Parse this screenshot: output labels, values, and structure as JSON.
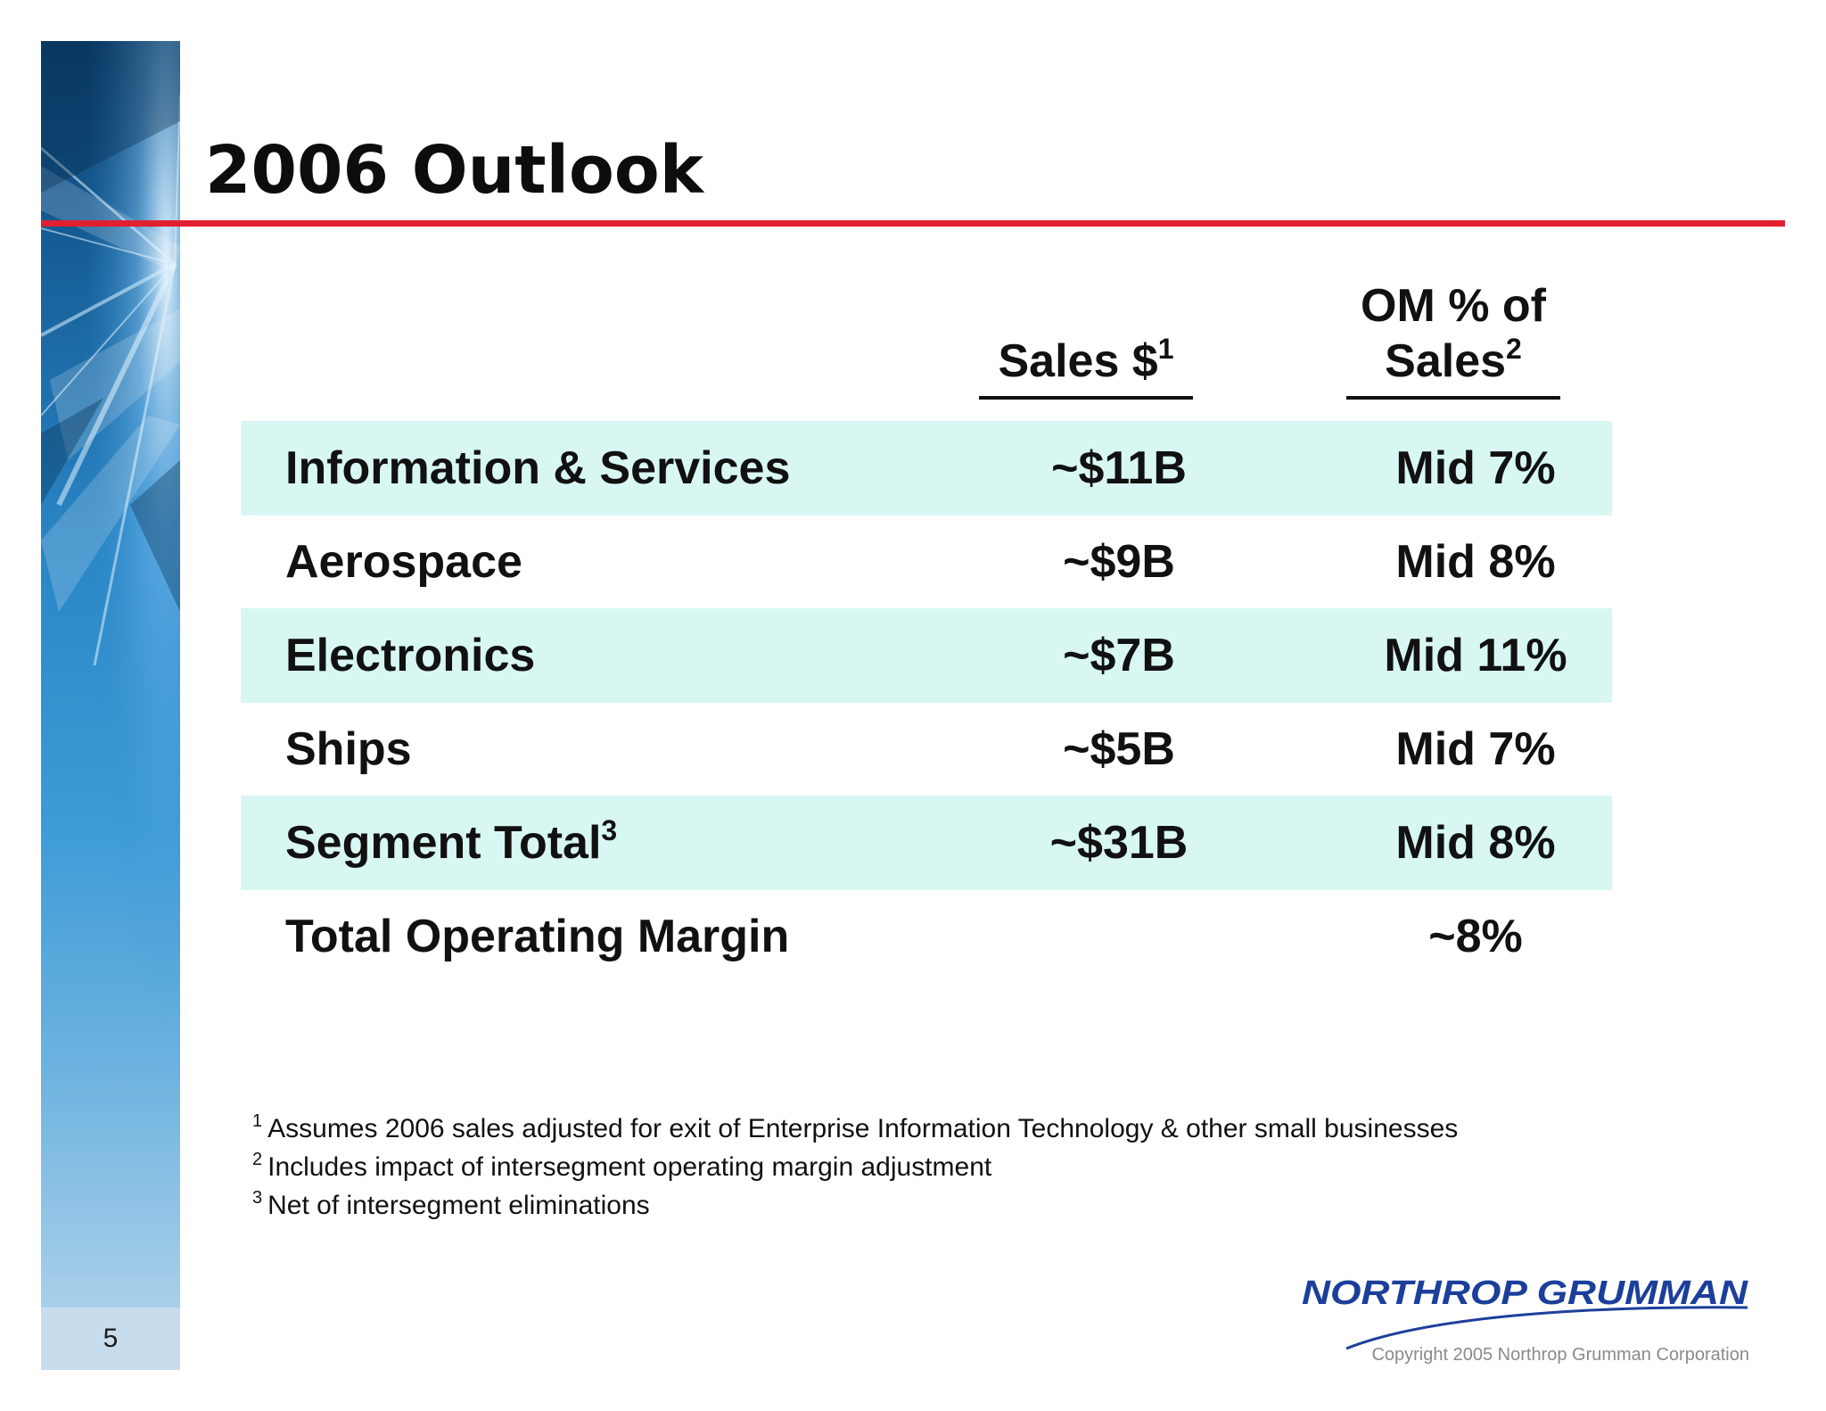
{
  "page_number": "5",
  "title": "2006 Outlook",
  "columns": {
    "sales": {
      "label": "Sales $",
      "footnote": "1"
    },
    "om": {
      "label_line1": "OM % of",
      "label_line2": "Sales",
      "footnote": "2"
    }
  },
  "rows": [
    {
      "label": "Information & Services",
      "label_footnote": "",
      "sales": "~$11B",
      "om": "Mid 7%",
      "shaded": true
    },
    {
      "label": "Aerospace",
      "label_footnote": "",
      "sales": "~$9B",
      "om": "Mid 8%",
      "shaded": false
    },
    {
      "label": "Electronics",
      "label_footnote": "",
      "sales": "~$7B",
      "om": "Mid 11%",
      "shaded": true
    },
    {
      "label": "Ships",
      "label_footnote": "",
      "sales": "~$5B",
      "om": "Mid 7%",
      "shaded": false
    },
    {
      "label": "Segment Total",
      "label_footnote": "3",
      "sales": "~$31B",
      "om": "Mid 8%",
      "shaded": true
    },
    {
      "label": "Total Operating Margin",
      "label_footnote": "",
      "sales": "",
      "om": "~8%",
      "shaded": false
    }
  ],
  "footnotes": [
    {
      "num": "1",
      "text": "Assumes 2006 sales adjusted for exit of Enterprise Information Technology & other small businesses"
    },
    {
      "num": "2",
      "text": "Includes impact of intersegment operating margin adjustment"
    },
    {
      "num": "3",
      "text": "Net of intersegment eliminations"
    }
  ],
  "logo_text": "NORTHROP GRUMMAN",
  "copyright": "Copyright 2005 Northrop Grumman Corporation",
  "colors": {
    "accent_red": "#e21f2f",
    "row_shade": "#d8f7f3",
    "logo_blue": "#1b3f9a"
  }
}
